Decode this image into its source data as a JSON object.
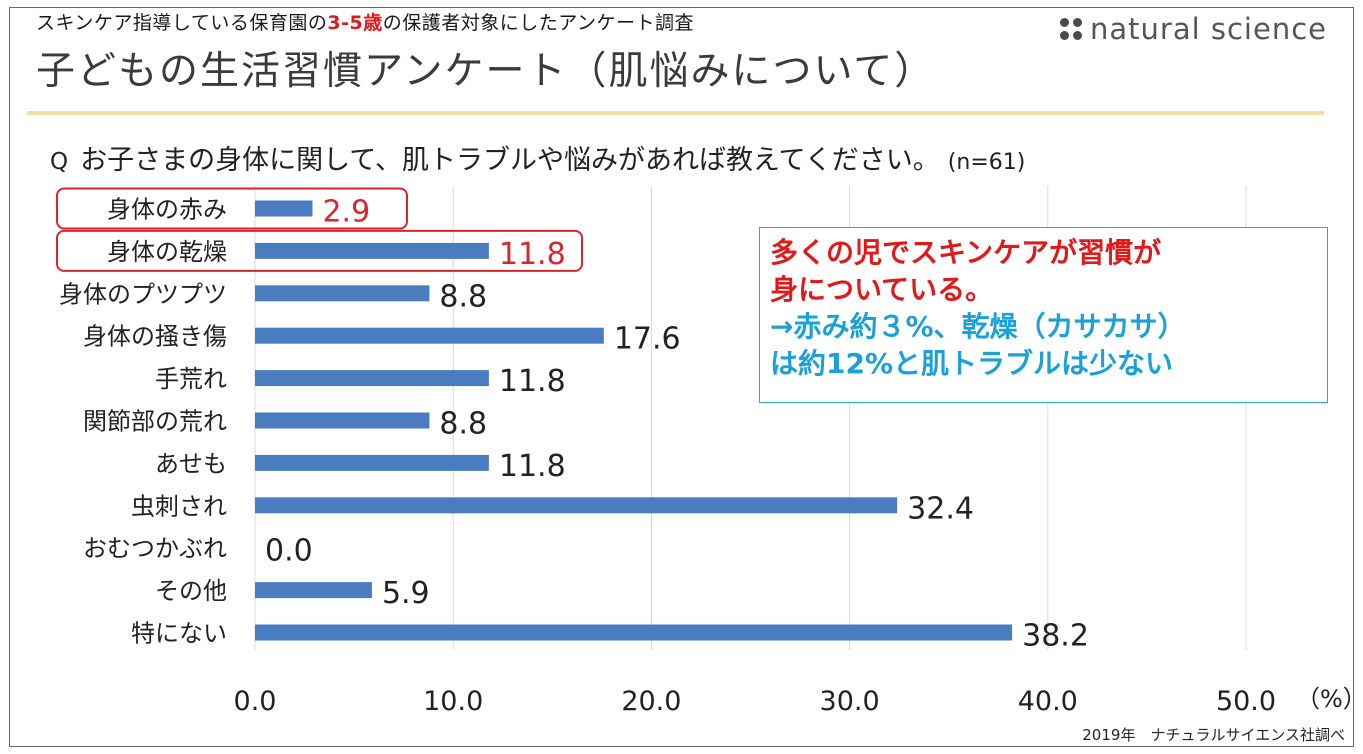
{
  "header": {
    "subtitle_pre": "スキンケア指導している保育園の",
    "subtitle_highlight": "3-5歳",
    "subtitle_post": "の保護者対象にしたアンケート調査",
    "title": "子どもの生活習慣アンケート（肌悩みについて）",
    "brand": "natural science"
  },
  "question": {
    "prefix": "Q",
    "text": "お子さまの身体に関して、肌トラブルや悩みがあれば教えてください。",
    "n": "(n=61)"
  },
  "note": {
    "line1": "多くの児でスキンケアが習慣が",
    "line2": "身についている。",
    "line3": "→赤み約３%、乾燥（カサカサ）",
    "line4": "は約12%と肌トラブルは少ない"
  },
  "credit": "2019年　ナチュラルサイエンス社調べ",
  "colors": {
    "bar": "#4a7dc0",
    "highlight": "#d8262f",
    "grid": "#d9d9d9"
  },
  "chart_data": {
    "type": "bar",
    "orientation": "horizontal",
    "categories": [
      "身体の赤み",
      "身体の乾燥",
      "身体のプツプツ",
      "身体の掻き傷",
      "手荒れ",
      "関節部の荒れ",
      "あせも",
      "虫刺され",
      "おむつかぶれ",
      "その他",
      "特にない"
    ],
    "values": [
      2.9,
      11.8,
      8.8,
      17.6,
      11.8,
      8.8,
      11.8,
      32.4,
      0.0,
      5.9,
      38.2
    ],
    "value_labels": [
      "2.9",
      "11.8",
      "8.8",
      "17.6",
      "11.8",
      "8.8",
      "11.8",
      "32.4",
      "0.0",
      "5.9",
      "38.2"
    ],
    "highlighted": [
      0,
      1
    ],
    "xlim": [
      0,
      50
    ],
    "ticks": [
      0,
      10,
      20,
      30,
      40,
      50
    ],
    "tick_labels": [
      "0.0",
      "10.0",
      "20.0",
      "30.0",
      "40.0",
      "50.0"
    ],
    "unit_label": "（%）",
    "grid": true
  }
}
